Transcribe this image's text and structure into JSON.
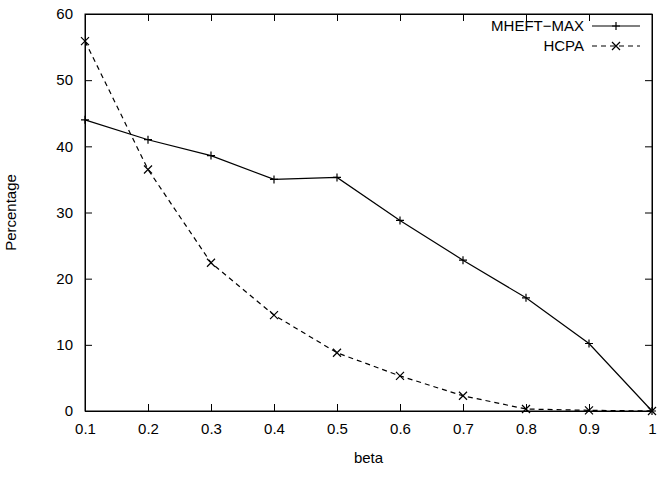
{
  "chart_data": {
    "type": "line",
    "x": [
      0.1,
      0.2,
      0.3,
      0.4,
      0.5,
      0.6,
      0.7,
      0.8,
      0.9,
      1
    ],
    "series": [
      {
        "name": "MHEFT−MAX",
        "color": "#000000",
        "line_style": "solid",
        "marker": "plus",
        "values": [
          44,
          41,
          38.6,
          35,
          35.3,
          28.8,
          22.8,
          17.1,
          10.2,
          0
        ]
      },
      {
        "name": "HCPA",
        "color": "#000000",
        "line_style": "dashed",
        "marker": "cross",
        "values": [
          55.9,
          36.5,
          22.4,
          14.5,
          8.8,
          5.3,
          2.3,
          0.3,
          0.1,
          0
        ]
      }
    ],
    "x_label": "beta",
    "y_label": "Percentage",
    "xlim": [
      0.1,
      1
    ],
    "xticks": [
      0.1,
      0.2,
      0.3,
      0.4,
      0.5,
      0.6,
      0.7,
      0.8,
      0.9,
      1
    ],
    "ylim": [
      0,
      60
    ],
    "yticks": [
      0,
      10,
      20,
      30,
      40,
      50,
      60
    ],
    "grid": false,
    "legend": "top-right"
  }
}
